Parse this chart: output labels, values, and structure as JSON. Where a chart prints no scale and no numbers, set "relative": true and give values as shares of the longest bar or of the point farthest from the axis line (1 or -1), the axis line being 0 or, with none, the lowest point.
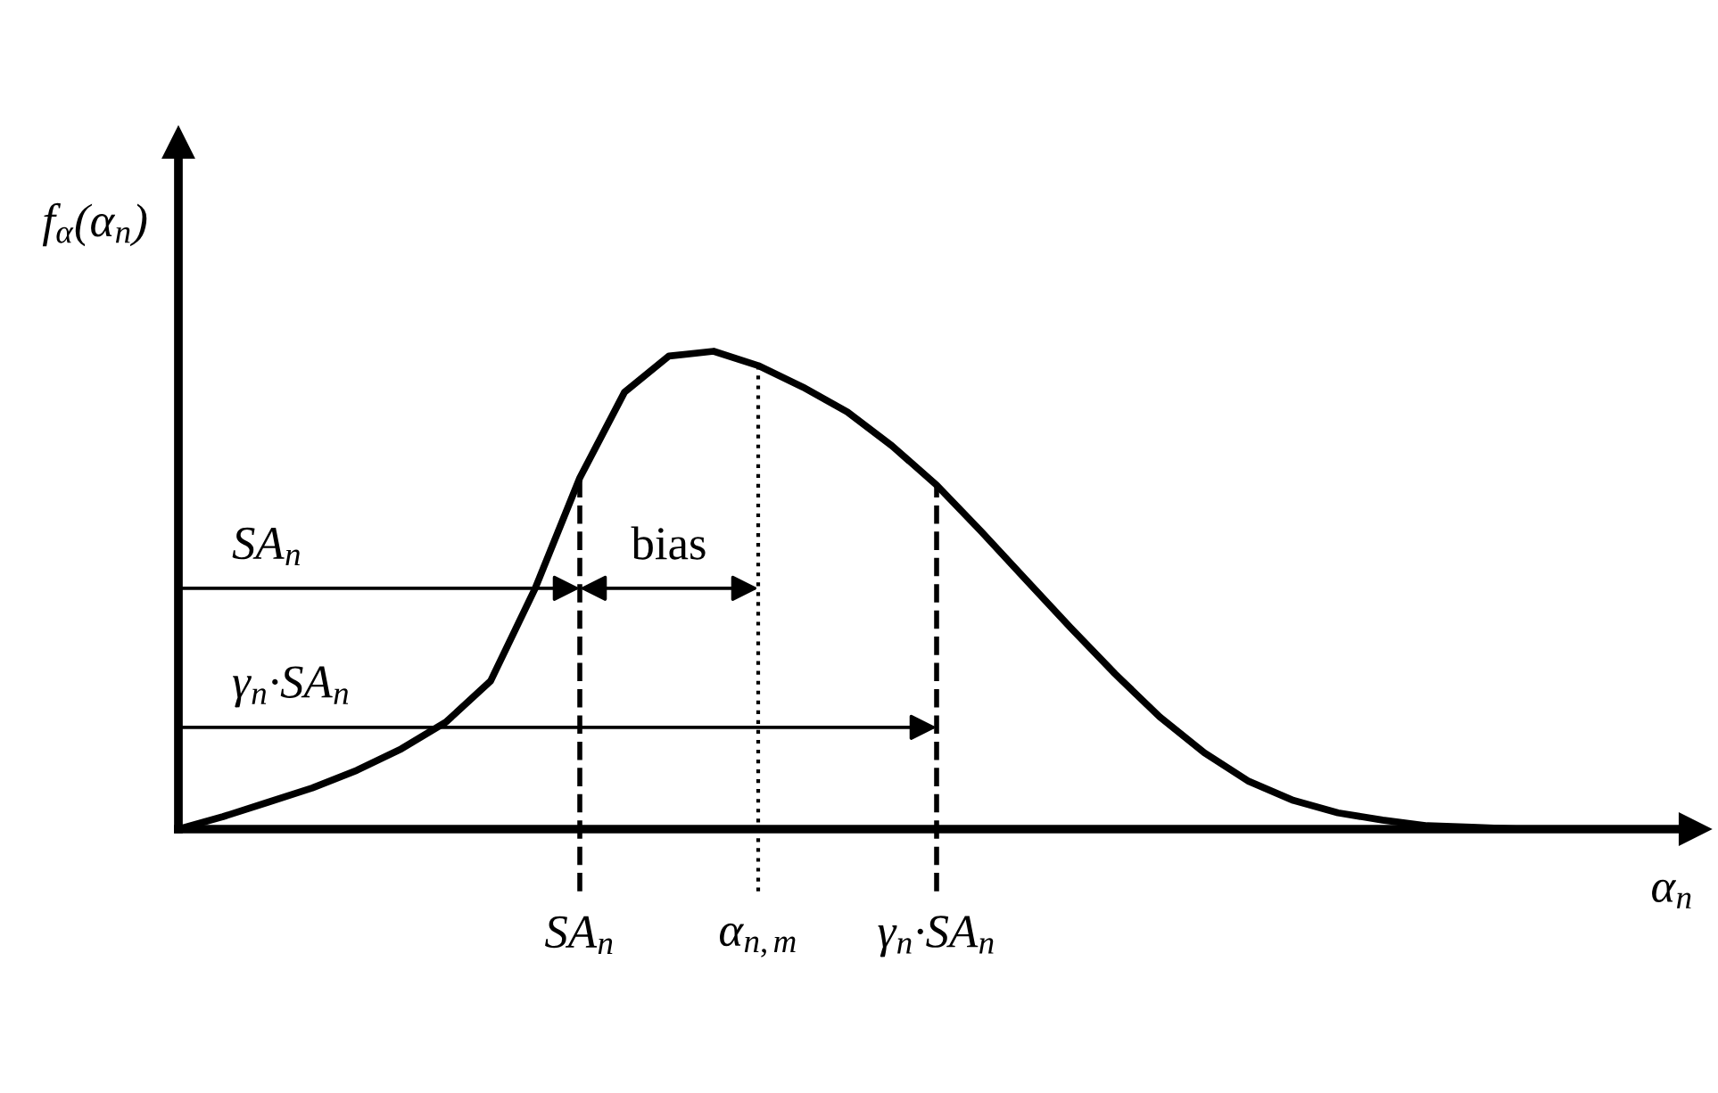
{
  "chart_data": {
    "type": "line",
    "relative": true,
    "xlabel": "α$_{n}$",
    "ylabel": "f$_{α}$(α$_{n}$)",
    "categories": [
      null,
      null,
      null,
      null,
      null,
      null,
      null,
      null,
      null,
      "SA$_{n}$",
      null,
      null,
      null,
      "α$_{n,m}$",
      null,
      null,
      null,
      "γ$_{n}$·SA$_{n}$",
      null,
      null,
      null,
      null,
      null,
      null,
      null,
      null,
      null,
      null,
      null,
      null,
      null,
      null,
      null
    ],
    "series": [
      {
        "color": "#000000",
        "values": [
          0,
          0.026,
          0.056,
          0.086,
          0.123,
          0.168,
          0.224,
          0.31,
          0.504,
          0.735,
          0.914,
          0.99,
          1,
          0.97,
          0.925,
          0.873,
          0.802,
          0.72,
          0.623,
          0.522,
          0.422,
          0.325,
          0.235,
          0.16,
          0.1,
          0.06,
          0.034,
          0.019,
          0.007,
          0.004,
          0,
          0,
          0
        ]
      }
    ],
    "annotations": [
      "SA$_{n}$",
      "bias",
      "γ$_{n}$·SA$_{n}$"
    ],
    "marker": "none",
    "line_style": "solid",
    "grid": "x"
  }
}
